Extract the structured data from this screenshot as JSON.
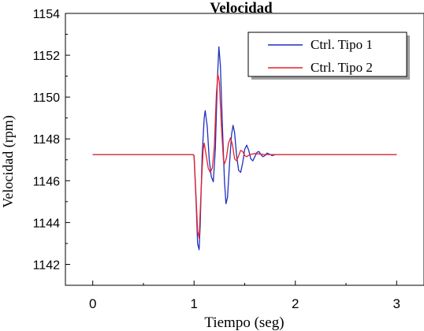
{
  "chart_data": {
    "type": "line",
    "title": "Velocidad",
    "xlabel": "Tiempo (seg)",
    "ylabel": "Velocidad (rpm)",
    "xlim": [
      -0.27,
      3.27
    ],
    "ylim": [
      1141,
      1154
    ],
    "xticks": [
      0,
      1,
      2,
      3
    ],
    "xtick_labels": [
      "0",
      "1",
      "2",
      "3"
    ],
    "yticks": [
      1142,
      1144,
      1146,
      1148,
      1150,
      1152,
      1154
    ],
    "ytick_labels": [
      "1142",
      "1144",
      "1146",
      "1148",
      "1150",
      "1152",
      "1154"
    ],
    "grid": false,
    "legend_position": "top-right",
    "series": [
      {
        "name": "Ctrl. Tipo 1",
        "color": "#1f2fbf",
        "points": [
          [
            0,
            1147.25
          ],
          [
            0.99,
            1147.25
          ],
          [
            1.0,
            1147.2
          ],
          [
            1.02,
            1145.0
          ],
          [
            1.035,
            1143.0
          ],
          [
            1.05,
            1142.7
          ],
          [
            1.06,
            1143.8
          ],
          [
            1.08,
            1147.2
          ],
          [
            1.1,
            1149.0
          ],
          [
            1.11,
            1149.35
          ],
          [
            1.13,
            1148.6
          ],
          [
            1.15,
            1147.0
          ],
          [
            1.17,
            1146.2
          ],
          [
            1.19,
            1145.95
          ],
          [
            1.21,
            1147.5
          ],
          [
            1.23,
            1150.8
          ],
          [
            1.245,
            1152.4
          ],
          [
            1.26,
            1151.5
          ],
          [
            1.28,
            1148.6
          ],
          [
            1.3,
            1146.0
          ],
          [
            1.315,
            1144.9
          ],
          [
            1.33,
            1145.2
          ],
          [
            1.35,
            1146.8
          ],
          [
            1.37,
            1148.2
          ],
          [
            1.385,
            1148.65
          ],
          [
            1.4,
            1148.3
          ],
          [
            1.42,
            1147.2
          ],
          [
            1.44,
            1146.5
          ],
          [
            1.46,
            1146.4
          ],
          [
            1.48,
            1146.85
          ],
          [
            1.5,
            1147.5
          ],
          [
            1.52,
            1147.7
          ],
          [
            1.54,
            1147.45
          ],
          [
            1.56,
            1147.05
          ],
          [
            1.58,
            1146.95
          ],
          [
            1.6,
            1147.15
          ],
          [
            1.62,
            1147.35
          ],
          [
            1.64,
            1147.4
          ],
          [
            1.66,
            1147.25
          ],
          [
            1.68,
            1147.15
          ],
          [
            1.7,
            1147.2
          ],
          [
            1.72,
            1147.32
          ],
          [
            1.74,
            1147.28
          ],
          [
            1.77,
            1147.2
          ],
          [
            1.8,
            1147.25
          ],
          [
            1.9,
            1147.25
          ],
          [
            3.0,
            1147.25
          ]
        ]
      },
      {
        "name": "Ctrl. Tipo 2",
        "color": "#e8202a",
        "points": [
          [
            0,
            1147.25
          ],
          [
            0.99,
            1147.25
          ],
          [
            1.0,
            1147.2
          ],
          [
            1.02,
            1145.2
          ],
          [
            1.035,
            1143.6
          ],
          [
            1.05,
            1143.25
          ],
          [
            1.07,
            1145.6
          ],
          [
            1.09,
            1147.5
          ],
          [
            1.1,
            1147.8
          ],
          [
            1.12,
            1147.2
          ],
          [
            1.14,
            1146.6
          ],
          [
            1.16,
            1146.4
          ],
          [
            1.18,
            1146.6
          ],
          [
            1.2,
            1147.6
          ],
          [
            1.22,
            1150.1
          ],
          [
            1.235,
            1151.1
          ],
          [
            1.25,
            1150.7
          ],
          [
            1.27,
            1148.6
          ],
          [
            1.29,
            1147.0
          ],
          [
            1.3,
            1146.8
          ],
          [
            1.32,
            1147.1
          ],
          [
            1.34,
            1147.8
          ],
          [
            1.36,
            1148.05
          ],
          [
            1.38,
            1147.7
          ],
          [
            1.4,
            1147.05
          ],
          [
            1.42,
            1146.95
          ],
          [
            1.44,
            1147.2
          ],
          [
            1.46,
            1147.45
          ],
          [
            1.48,
            1147.4
          ],
          [
            1.5,
            1147.2
          ],
          [
            1.52,
            1147.15
          ],
          [
            1.55,
            1147.25
          ],
          [
            1.6,
            1147.3
          ],
          [
            1.7,
            1147.25
          ],
          [
            3.0,
            1147.25
          ]
        ]
      }
    ]
  }
}
